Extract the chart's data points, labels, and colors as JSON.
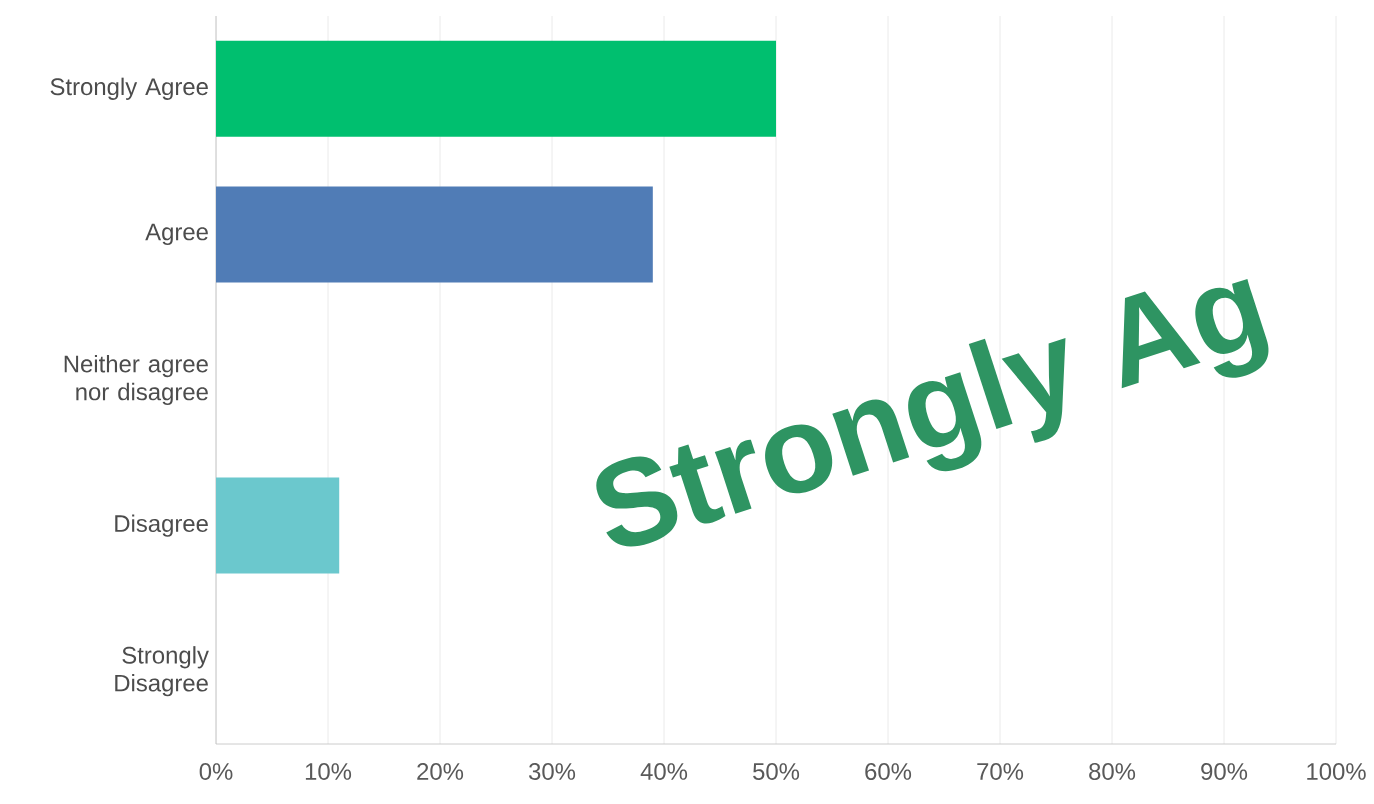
{
  "chart_data": {
    "type": "bar",
    "orientation": "horizontal",
    "categories": [
      "Strongly Agree",
      "Agree",
      "Neither agree nor disagree",
      "Disagree",
      "Strongly Disagree"
    ],
    "values": [
      50,
      39,
      0,
      11,
      0
    ],
    "colors": [
      "#00bf6f",
      "#507cb6",
      "#f9be00",
      "#6bc8cd",
      "#d25f90"
    ],
    "xlim": [
      0,
      100
    ],
    "xticks": [
      {
        "value": 0,
        "label": "0%"
      },
      {
        "value": 10,
        "label": "10%"
      },
      {
        "value": 20,
        "label": "20%"
      },
      {
        "value": 30,
        "label": "30%"
      },
      {
        "value": 40,
        "label": "40%"
      },
      {
        "value": 50,
        "label": "50%"
      },
      {
        "value": 60,
        "label": "60%"
      },
      {
        "value": 70,
        "label": "70%"
      },
      {
        "value": 80,
        "label": "80%"
      },
      {
        "value": 90,
        "label": "90%"
      },
      {
        "value": 100,
        "label": "100%"
      }
    ],
    "grid": "x",
    "annotations": [
      "Strongly Ag"
    ]
  }
}
